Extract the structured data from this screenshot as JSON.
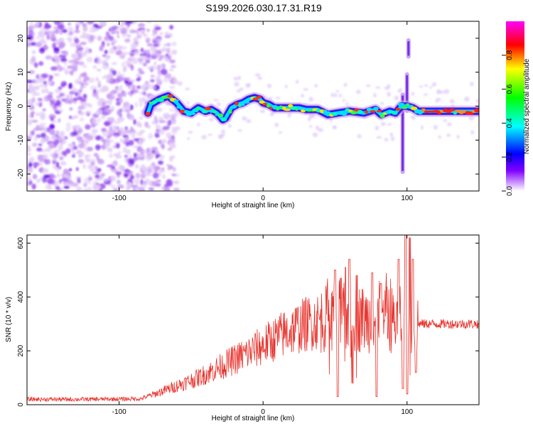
{
  "title": "S199.2026.030.17.31.R19",
  "chart_data": [
    {
      "type": "heatmap",
      "name": "spectrogram",
      "xlabel": "Height of straight line (km)",
      "ylabel": "Frequency (Hz)",
      "xlim": [
        -164,
        150
      ],
      "ylim": [
        -25,
        25
      ],
      "xticks": [
        -100,
        0,
        100
      ],
      "yticks": [
        -20,
        -10,
        0,
        10,
        20
      ],
      "colorbar": {
        "label": "Normalized spectral amplitude",
        "range": [
          0,
          1
        ],
        "ticks": [
          0.0,
          0.2,
          0.4,
          0.6,
          0.8
        ],
        "colormap": [
          "#ff00ff",
          "#ff0000",
          "#ffff00",
          "#00ff00",
          "#00ffff",
          "#0000ff",
          "#8000ff",
          "#ffffff"
        ]
      },
      "noise_region_x": [
        -164,
        -80
      ],
      "ridge": [
        [
          -80,
          -2
        ],
        [
          -78,
          0.5
        ],
        [
          -72,
          2
        ],
        [
          -66,
          3
        ],
        [
          -60,
          1
        ],
        [
          -55,
          -1.5
        ],
        [
          -50,
          -2
        ],
        [
          -45,
          -0.5
        ],
        [
          -40,
          -1.5
        ],
        [
          -36,
          -1
        ],
        [
          -32,
          -2
        ],
        [
          -28,
          -4
        ],
        [
          -26,
          -3.5
        ],
        [
          -22,
          -0.5
        ],
        [
          -18,
          0.5
        ],
        [
          -14,
          1
        ],
        [
          -10,
          2
        ],
        [
          -6,
          2.5
        ],
        [
          -2,
          2
        ],
        [
          0,
          1
        ],
        [
          4,
          0.5
        ],
        [
          8,
          -0.5
        ],
        [
          15,
          -0.5
        ],
        [
          25,
          -0.5
        ],
        [
          30,
          -1
        ],
        [
          38,
          -1
        ],
        [
          45,
          -2.5
        ],
        [
          52,
          -2
        ],
        [
          60,
          -1.5
        ],
        [
          70,
          -2
        ],
        [
          78,
          -1
        ],
        [
          82,
          -2.5
        ],
        [
          88,
          -1.5
        ],
        [
          92,
          -2
        ],
        [
          96,
          0
        ],
        [
          100,
          0
        ],
        [
          104,
          -0.5
        ],
        [
          108,
          -1.5
        ],
        [
          115,
          -1.5
        ],
        [
          125,
          -1.5
        ],
        [
          135,
          -1.5
        ],
        [
          150,
          -1.5
        ]
      ],
      "vertical_features": [
        {
          "x": 97,
          "y": [
            -20,
            4
          ]
        },
        {
          "x": 100,
          "y": [
            -2,
            10
          ]
        },
        {
          "x": 101,
          "y": [
            14,
            20
          ]
        }
      ]
    },
    {
      "type": "line",
      "name": "snr",
      "xlabel": "Height of straight line (km)",
      "ylabel": "SNR (10 * v/v)",
      "xlim": [
        -164,
        150
      ],
      "ylim": [
        0,
        630
      ],
      "xticks": [
        -100,
        0,
        100
      ],
      "yticks": [
        0,
        200,
        400,
        600
      ],
      "color": "#e8302a",
      "trend": [
        [
          -164,
          20
        ],
        [
          -120,
          20
        ],
        [
          -85,
          22
        ],
        [
          -75,
          40
        ],
        [
          -60,
          70
        ],
        [
          -45,
          100
        ],
        [
          -30,
          140
        ],
        [
          -15,
          180
        ],
        [
          0,
          220
        ],
        [
          15,
          265
        ],
        [
          30,
          300
        ],
        [
          45,
          320
        ],
        [
          60,
          325
        ],
        [
          70,
          318
        ],
        [
          80,
          315
        ],
        [
          90,
          315
        ],
        [
          100,
          315
        ],
        [
          110,
          300
        ],
        [
          130,
          300
        ],
        [
          150,
          300
        ]
      ],
      "spikes": [
        {
          "x": 50,
          "value": 500
        },
        {
          "x": 52,
          "value": 30
        },
        {
          "x": 54,
          "value": 470
        },
        {
          "x": 57,
          "value": 510
        },
        {
          "x": 60,
          "value": 540
        },
        {
          "x": 62,
          "value": 80
        },
        {
          "x": 65,
          "value": 480
        },
        {
          "x": 76,
          "value": 490
        },
        {
          "x": 79,
          "value": 30
        },
        {
          "x": 82,
          "value": 450
        },
        {
          "x": 94,
          "value": 540
        },
        {
          "x": 97,
          "value": 60
        },
        {
          "x": 99,
          "value": 630
        },
        {
          "x": 100,
          "value": 40
        },
        {
          "x": 102,
          "value": 620
        },
        {
          "x": 104,
          "value": 540
        },
        {
          "x": 106,
          "value": 120
        }
      ]
    }
  ]
}
